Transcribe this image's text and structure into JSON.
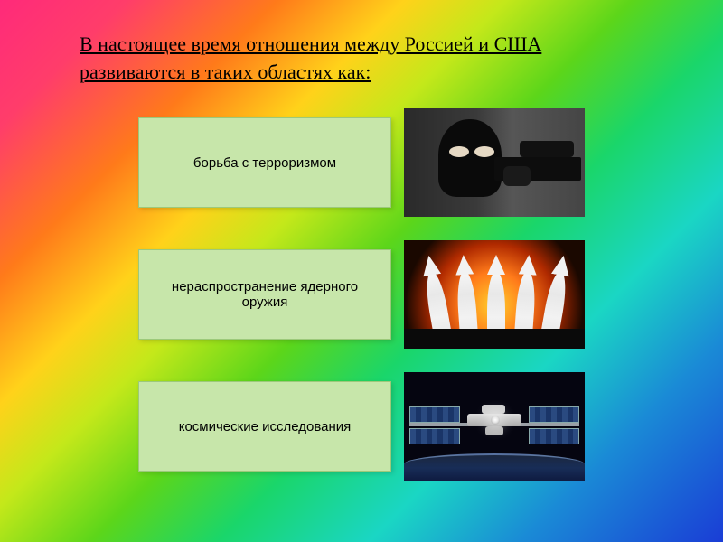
{
  "title": "В настоящее время отношения между Россией и США развиваются в таких областях как:",
  "items": [
    {
      "label": "борьба с терроризмом"
    },
    {
      "label": "нераспространение ядерного оружия"
    },
    {
      "label": "космические исследования"
    }
  ],
  "colors": {
    "card_bg": "#c7e6aa",
    "card_border": "#9cc97a",
    "text": "#000000"
  }
}
